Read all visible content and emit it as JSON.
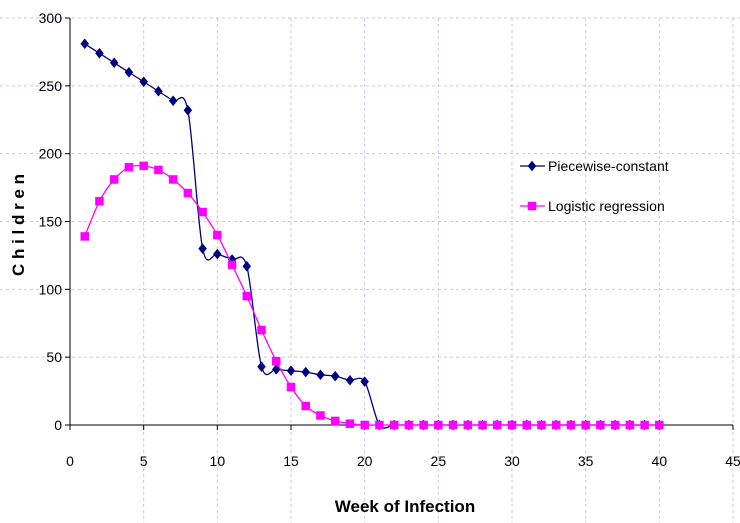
{
  "chart_data": {
    "type": "line",
    "title": "",
    "xlabel": "Week of Infection",
    "ylabel": "C h i l d r e n",
    "xlim": [
      0,
      45
    ],
    "ylim": [
      0,
      300
    ],
    "x_ticks": [
      0,
      5,
      10,
      15,
      20,
      25,
      30,
      35,
      40,
      45
    ],
    "y_ticks": [
      0,
      50,
      100,
      150,
      200,
      250,
      300
    ],
    "grid": "dashed",
    "legend_position": "right",
    "series": [
      {
        "name": "Piecewise-constant",
        "color": "#000080",
        "marker": "diamond",
        "x": [
          1,
          2,
          3,
          4,
          5,
          6,
          7,
          8,
          9,
          10,
          11,
          12,
          13,
          14,
          15,
          16,
          17,
          18,
          19,
          20,
          21,
          22,
          23,
          24,
          25,
          26,
          27,
          28,
          29,
          30,
          31,
          32,
          33,
          34,
          35,
          36,
          37,
          38,
          39,
          40
        ],
        "y": [
          281,
          274,
          267,
          260,
          253,
          246,
          239,
          232,
          130,
          126,
          122,
          117,
          43,
          41,
          40,
          39,
          37,
          36,
          33,
          32,
          0,
          0,
          0,
          0,
          0,
          0,
          0,
          0,
          0,
          0,
          0,
          0,
          0,
          0,
          0,
          0,
          0,
          0,
          0,
          0
        ]
      },
      {
        "name": "Logistic regression",
        "color": "#ff00ff",
        "marker": "square",
        "x": [
          1,
          2,
          3,
          4,
          5,
          6,
          7,
          8,
          9,
          10,
          11,
          12,
          13,
          14,
          15,
          16,
          17,
          18,
          19,
          20,
          21,
          22,
          23,
          24,
          25,
          26,
          27,
          28,
          29,
          30,
          31,
          32,
          33,
          34,
          35,
          36,
          37,
          38,
          39,
          40
        ],
        "y": [
          139,
          165,
          181,
          190,
          191,
          188,
          181,
          171,
          157,
          140,
          118,
          95,
          70,
          47,
          28,
          14,
          7,
          3,
          1,
          0,
          0,
          0,
          0,
          0,
          0,
          0,
          0,
          0,
          0,
          0,
          0,
          0,
          0,
          0,
          0,
          0,
          0,
          0,
          0,
          0
        ]
      }
    ]
  }
}
